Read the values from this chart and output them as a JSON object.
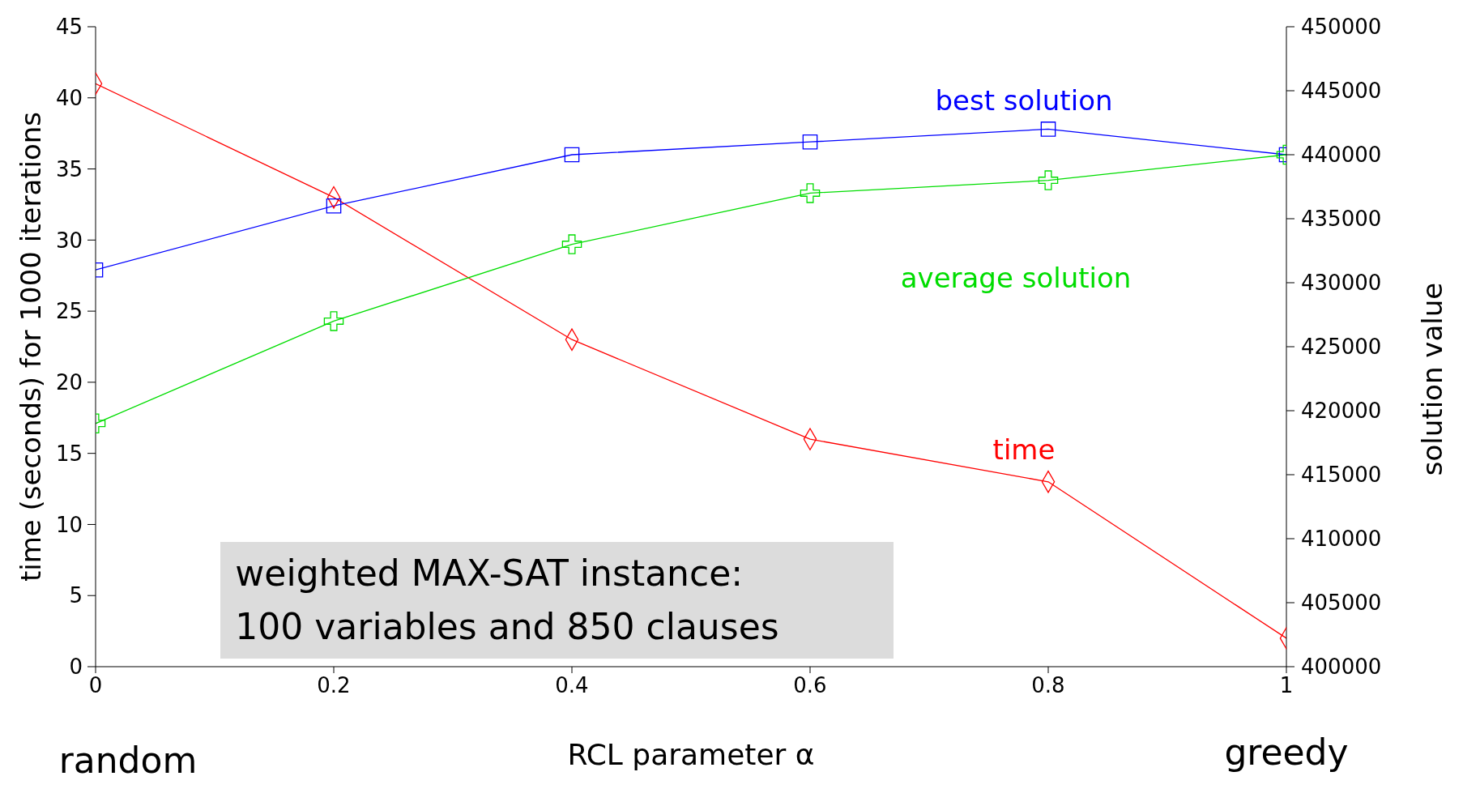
{
  "chart_data": {
    "type": "line",
    "xlabel": "RCL parameter α",
    "ylabel": "time (seconds) for 1000 iterations",
    "y2label": "solution value",
    "x": [
      0,
      0.2,
      0.4,
      0.6,
      0.8,
      1
    ],
    "series": [
      {
        "name": "time",
        "color": "#ff0000",
        "marker": "diamond",
        "values": [
          41,
          33,
          23,
          16,
          13,
          2
        ]
      },
      {
        "name": "best solution",
        "color": "#0000ff",
        "marker": "square",
        "axis": "y2",
        "values": [
          431000,
          436000,
          440000,
          441000,
          442000,
          440000
        ]
      },
      {
        "name": "average solution",
        "color": "#00dd00",
        "marker": "cross",
        "axis": "y2",
        "values": [
          419000,
          427000,
          433000,
          437000,
          438000,
          440000
        ]
      }
    ],
    "xlim": [
      0,
      1
    ],
    "xticks": [
      0,
      0.2,
      0.4,
      0.6,
      0.8,
      1
    ],
    "ylim": [
      0,
      45
    ],
    "yticks": [
      0,
      5,
      10,
      15,
      20,
      25,
      30,
      35,
      40,
      45
    ],
    "y2lim": [
      400000,
      450000
    ],
    "y2ticks": [
      400000,
      405000,
      410000,
      415000,
      420000,
      425000,
      430000,
      435000,
      440000,
      445000,
      450000
    ],
    "grid": false,
    "line_style": "solid",
    "annotations": [
      "random",
      "greedy",
      "weighted MAX-SAT instance:\n100 variables and 850 clauses"
    ]
  }
}
